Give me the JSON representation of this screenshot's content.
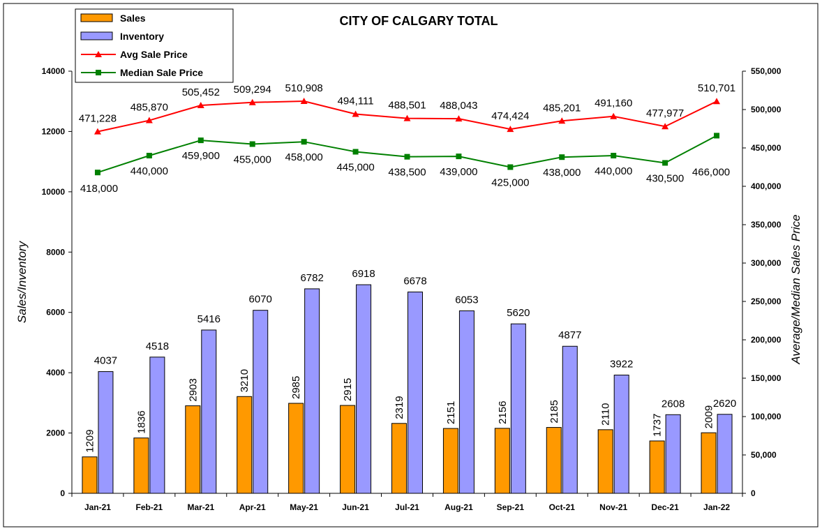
{
  "chart_data": {
    "type": "bar",
    "title": "CITY OF CALGARY TOTAL",
    "categories": [
      "Jan-21",
      "Feb-21",
      "Mar-21",
      "Apr-21",
      "May-21",
      "Jun-21",
      "Jul-21",
      "Aug-21",
      "Sep-21",
      "Oct-21",
      "Nov-21",
      "Dec-21",
      "Jan-22"
    ],
    "ylabel": "Sales/Inventory",
    "y2label": "Average/Median Sales Price",
    "ylim": [
      0,
      14000
    ],
    "y2lim": [
      0,
      550000
    ],
    "yticks": [
      "0",
      "2000",
      "4000",
      "6000",
      "8000",
      "10000",
      "12000",
      "14000"
    ],
    "y2ticks": [
      "0",
      "50,000",
      "100,000",
      "150,000",
      "200,000",
      "250,000",
      "300,000",
      "350,000",
      "400,000",
      "450,000",
      "500,000",
      "550,000"
    ],
    "grid": false,
    "legend_position": "top-left",
    "series": [
      {
        "name": "Sales",
        "kind": "bar",
        "axis": "left",
        "color": "#FF9900",
        "values": [
          1209,
          1836,
          2903,
          3210,
          2985,
          2915,
          2319,
          2151,
          2156,
          2185,
          2110,
          1737,
          2009
        ],
        "labels": [
          "1209",
          "1836",
          "2903",
          "3210",
          "2985",
          "2915",
          "2319",
          "2151",
          "2156",
          "2185",
          "2110",
          "1737",
          "2009"
        ]
      },
      {
        "name": "Inventory",
        "kind": "bar",
        "axis": "left",
        "color": "#9999FF",
        "values": [
          4037,
          4518,
          5416,
          6070,
          6782,
          6918,
          6678,
          6053,
          5620,
          4877,
          3922,
          2608,
          2620
        ],
        "labels": [
          "4037",
          "4518",
          "5416",
          "6070",
          "6782",
          "6918",
          "6678",
          "6053",
          "5620",
          "4877",
          "3922",
          "2608",
          "2620"
        ]
      },
      {
        "name": "Avg Sale Price",
        "kind": "line",
        "axis": "right",
        "color": "#FF0000",
        "marker": "triangle",
        "values": [
          471228,
          485870,
          505452,
          509294,
          510908,
          494111,
          488501,
          488043,
          474424,
          485201,
          491160,
          477977,
          510701
        ],
        "labels": [
          "471,228",
          "485,870",
          "505,452",
          "509,294",
          "510,908",
          "494,111",
          "488,501",
          "488,043",
          "474,424",
          "485,201",
          "491,160",
          "477,977",
          "510,701"
        ]
      },
      {
        "name": "Median Sale Price",
        "kind": "line",
        "axis": "right",
        "color": "#008000",
        "marker": "square",
        "values": [
          418000,
          440000,
          459900,
          455000,
          458000,
          445000,
          438500,
          439000,
          425000,
          438000,
          440000,
          430500,
          466000
        ],
        "labels": [
          "418,000",
          "440,000",
          "459,900",
          "455,000",
          "458,000",
          "445,000",
          "438,500",
          "439,000",
          "425,000",
          "438,000",
          "440,000",
          "430,500",
          "466,000"
        ]
      }
    ]
  }
}
